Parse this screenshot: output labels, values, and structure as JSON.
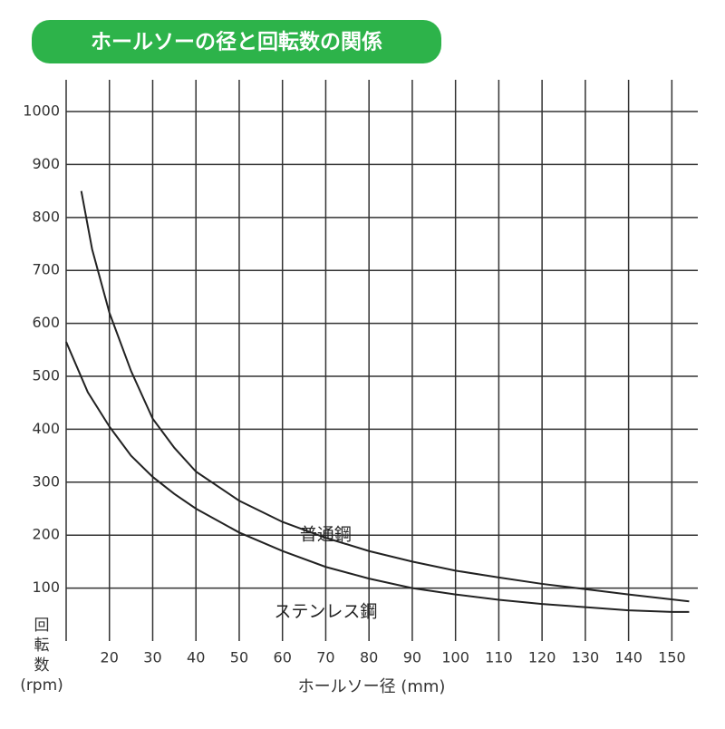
{
  "chart_data": {
    "type": "line",
    "title": "ホールソーの径と回転数の関係",
    "x_label": "ホールソー径 (mm)",
    "y_label": [
      "回",
      "転",
      "数",
      "(rpm)"
    ],
    "xlim": [
      10,
      156
    ],
    "xticks": [
      20,
      30,
      40,
      50,
      60,
      70,
      80,
      90,
      100,
      110,
      120,
      130,
      140,
      150
    ],
    "ylim": [
      0,
      1060
    ],
    "yticks": [
      100,
      200,
      300,
      400,
      500,
      600,
      700,
      800,
      900,
      1000
    ],
    "grid": true,
    "title_color": "#2db34a",
    "series": [
      {
        "name": "普通鋼",
        "color": "#222222",
        "x": [
          13.5,
          16,
          20,
          25,
          30,
          35,
          40,
          50,
          60,
          70,
          80,
          90,
          100,
          110,
          120,
          130,
          140,
          154
        ],
        "values": [
          850,
          740,
          620,
          510,
          420,
          365,
          320,
          265,
          225,
          195,
          170,
          150,
          133,
          120,
          108,
          98,
          88,
          75
        ],
        "label_pos": [
          70,
          200
        ]
      },
      {
        "name": "ステンレス鋼",
        "color": "#222222",
        "x": [
          10,
          15,
          20,
          25,
          30,
          35,
          40,
          50,
          60,
          70,
          80,
          90,
          100,
          110,
          120,
          130,
          140,
          150,
          154
        ],
        "values": [
          565,
          470,
          405,
          350,
          310,
          278,
          250,
          205,
          170,
          140,
          118,
          100,
          88,
          78,
          70,
          64,
          58,
          55,
          55
        ],
        "label_pos": [
          70,
          55
        ]
      }
    ]
  }
}
